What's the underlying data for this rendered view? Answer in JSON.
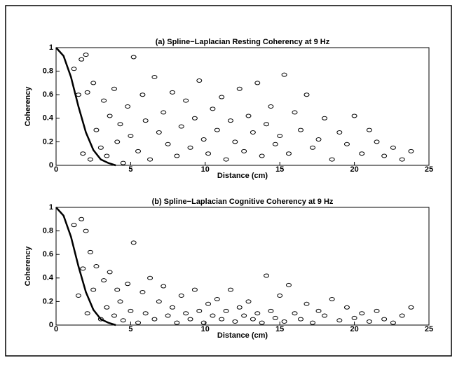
{
  "chart_data": [
    {
      "type": "scatter",
      "title": "(a) Spline−Laplacian Resting Coherency at 9 Hz",
      "xlabel": "Distance (cm)",
      "ylabel": "Coherency",
      "xlim": [
        0,
        25
      ],
      "ylim": [
        0,
        1
      ],
      "xticks": [
        0,
        5,
        10,
        15,
        20,
        25
      ],
      "yticks": [
        0,
        0.2,
        0.4,
        0.6,
        0.8,
        1
      ],
      "color": "#000000",
      "points": {
        "x": [
          1.2,
          1.5,
          1.7,
          1.8,
          2.0,
          2.1,
          2.3,
          2.5,
          2.7,
          3.0,
          3.2,
          3.4,
          3.6,
          3.9,
          4.1,
          4.3,
          4.5,
          4.8,
          5.0,
          5.2,
          5.5,
          5.8,
          6.0,
          6.3,
          6.6,
          6.9,
          7.2,
          7.5,
          7.8,
          8.1,
          8.4,
          8.7,
          9.0,
          9.3,
          9.6,
          9.9,
          10.2,
          10.5,
          10.8,
          11.1,
          11.4,
          11.7,
          12.0,
          12.3,
          12.6,
          12.9,
          13.2,
          13.5,
          13.8,
          14.1,
          14.4,
          14.7,
          15.0,
          15.3,
          15.6,
          16.0,
          16.4,
          16.8,
          17.2,
          17.6,
          18.0,
          18.5,
          19.0,
          19.5,
          20.0,
          20.5,
          21.0,
          21.5,
          22.0,
          22.6,
          23.2,
          23.8
        ],
        "y": [
          0.82,
          0.6,
          0.9,
          0.1,
          0.94,
          0.62,
          0.05,
          0.7,
          0.3,
          0.15,
          0.55,
          0.08,
          0.42,
          0.65,
          0.2,
          0.35,
          0.02,
          0.5,
          0.25,
          0.92,
          0.12,
          0.6,
          0.38,
          0.05,
          0.75,
          0.28,
          0.45,
          0.18,
          0.62,
          0.08,
          0.33,
          0.55,
          0.15,
          0.4,
          0.72,
          0.22,
          0.1,
          0.48,
          0.3,
          0.58,
          0.05,
          0.38,
          0.2,
          0.65,
          0.12,
          0.42,
          0.28,
          0.7,
          0.08,
          0.35,
          0.5,
          0.18,
          0.25,
          0.77,
          0.1,
          0.45,
          0.3,
          0.6,
          0.15,
          0.22,
          0.4,
          0.05,
          0.28,
          0.18,
          0.42,
          0.1,
          0.3,
          0.2,
          0.08,
          0.15,
          0.05,
          0.12
        ]
      },
      "curve": {
        "x": [
          0,
          0.5,
          1,
          1.5,
          2,
          2.5,
          3,
          3.5,
          4
        ],
        "y": [
          1,
          0.93,
          0.75,
          0.5,
          0.28,
          0.13,
          0.05,
          0.02,
          0
        ]
      }
    },
    {
      "type": "scatter",
      "title": "(b) Spline−Laplacian Cognitive Coherency at 9 Hz",
      "xlabel": "Distance (cm)",
      "ylabel": "Coherency",
      "xlim": [
        0,
        25
      ],
      "ylim": [
        0,
        1
      ],
      "xticks": [
        0,
        5,
        10,
        15,
        20,
        25
      ],
      "yticks": [
        0,
        0.2,
        0.4,
        0.6,
        0.8,
        1
      ],
      "color": "#000000",
      "points": {
        "x": [
          1.2,
          1.5,
          1.7,
          1.8,
          2.0,
          2.1,
          2.3,
          2.5,
          2.7,
          3.0,
          3.2,
          3.4,
          3.6,
          3.9,
          4.1,
          4.3,
          4.5,
          4.8,
          5.0,
          5.2,
          5.5,
          5.8,
          6.0,
          6.3,
          6.6,
          6.9,
          7.2,
          7.5,
          7.8,
          8.1,
          8.4,
          8.7,
          9.0,
          9.3,
          9.6,
          9.9,
          10.2,
          10.5,
          10.8,
          11.1,
          11.4,
          11.7,
          12.0,
          12.3,
          12.6,
          12.9,
          13.2,
          13.5,
          13.8,
          14.1,
          14.4,
          14.7,
          15.0,
          15.3,
          15.6,
          16.0,
          16.4,
          16.8,
          17.2,
          17.6,
          18.0,
          18.5,
          19.0,
          19.5,
          20.0,
          20.5,
          21.0,
          21.5,
          22.0,
          22.6,
          23.2,
          23.8
        ],
        "y": [
          0.85,
          0.25,
          0.9,
          0.48,
          0.8,
          0.1,
          0.62,
          0.3,
          0.5,
          0.05,
          0.38,
          0.15,
          0.45,
          0.08,
          0.3,
          0.2,
          0.04,
          0.35,
          0.12,
          0.7,
          0.02,
          0.28,
          0.1,
          0.4,
          0.05,
          0.2,
          0.33,
          0.08,
          0.15,
          0.02,
          0.25,
          0.1,
          0.05,
          0.3,
          0.12,
          0.02,
          0.18,
          0.08,
          0.22,
          0.05,
          0.12,
          0.3,
          0.03,
          0.15,
          0.08,
          0.2,
          0.05,
          0.1,
          0.02,
          0.42,
          0.12,
          0.06,
          0.25,
          0.03,
          0.34,
          0.1,
          0.05,
          0.18,
          0.02,
          0.12,
          0.08,
          0.22,
          0.04,
          0.15,
          0.06,
          0.1,
          0.03,
          0.12,
          0.05,
          0.02,
          0.08,
          0.15
        ]
      },
      "curve": {
        "x": [
          0,
          0.5,
          1,
          1.5,
          2,
          2.5,
          3,
          3.5,
          4
        ],
        "y": [
          1,
          0.93,
          0.75,
          0.5,
          0.28,
          0.13,
          0.05,
          0.02,
          0
        ]
      }
    }
  ]
}
